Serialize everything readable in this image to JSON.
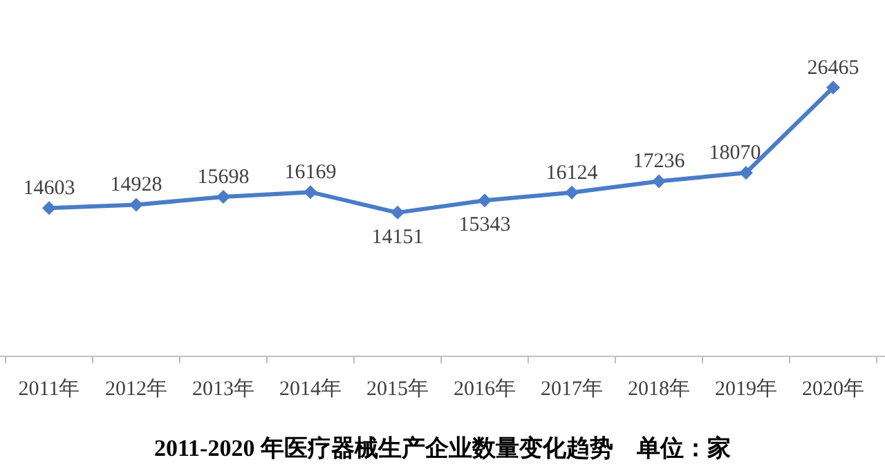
{
  "chart_data": {
    "type": "line",
    "title": "2011-2020 年医疗器械生产企业数量变化趋势    单位：家",
    "categories": [
      "2011年",
      "2012年",
      "2013年",
      "2014年",
      "2015年",
      "2016年",
      "2017年",
      "2018年",
      "2019年",
      "2020年"
    ],
    "series": [
      {
        "color": "#4a7cc7",
        "values": [
          14603,
          14928,
          15698,
          16169,
          14151,
          15343,
          16124,
          17236,
          18070,
          26465
        ]
      }
    ],
    "data_labels": true,
    "marker": "diamond",
    "line_style": "solid"
  }
}
